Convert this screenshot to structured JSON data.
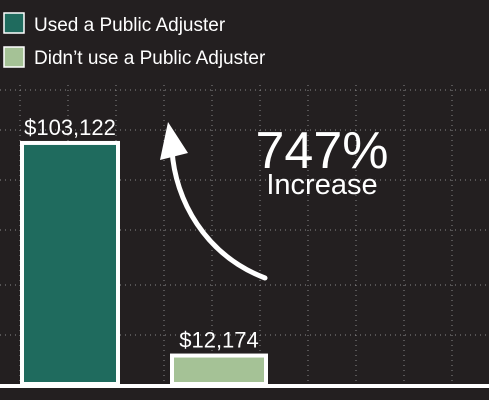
{
  "colors": {
    "background": "#231f20",
    "used_adjuster": "#1f6b5e",
    "no_adjuster": "#a5c296",
    "text": "#ffffff",
    "grid": "#8a8a8a"
  },
  "chart_data": {
    "type": "bar",
    "categories": [
      "Used a Public Adjuster",
      "Didn’t use a Public Adjuster"
    ],
    "values": [
      103122,
      12174
    ],
    "value_labels": [
      "$103,122",
      "$12,174"
    ],
    "series": [
      {
        "name": "Used a Public Adjuster",
        "values": [
          103122,
          null
        ]
      },
      {
        "name": "Didn’t use a Public Adjuster",
        "values": [
          null,
          12174
        ]
      }
    ],
    "ylim": [
      0,
      160000
    ],
    "grid": true,
    "legend": "top-left",
    "annotation": {
      "value": "747%",
      "label": "Increase",
      "arrow": "from-second-bar-to-first-bar"
    }
  }
}
